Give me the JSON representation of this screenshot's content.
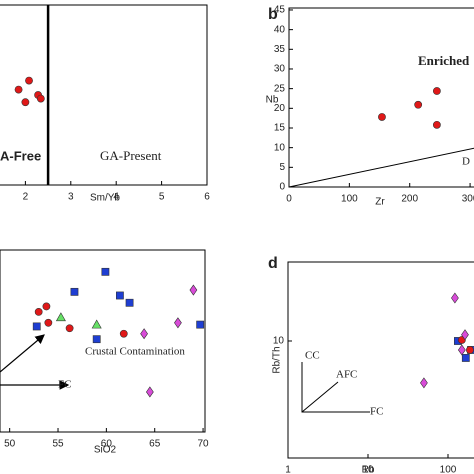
{
  "chart_data": [
    {
      "type": "scatter",
      "panel": "a",
      "xlabel": "Sm/Yb",
      "xlim": [
        0.78,
        6
      ],
      "ylim": [
        0,
        1
      ],
      "xticks": [
        2,
        3,
        4,
        5,
        6
      ],
      "divider_x": 2.5,
      "annotations": [
        "A-Free",
        "GA-Present"
      ],
      "series": [
        {
          "marker": "circle",
          "color": "#e01818",
          "x": [
            2.08,
            1.85,
            2.28,
            2.0,
            2.34
          ],
          "y": [
            0.58,
            0.53,
            0.5,
            0.46,
            0.48
          ]
        }
      ]
    },
    {
      "type": "scatter",
      "panel": "b",
      "label": "b",
      "xlabel": "Zr",
      "ylabel": "Nb",
      "xlim": [
        0,
        333
      ],
      "ylim": [
        0,
        45.5
      ],
      "xticks": [
        0,
        100,
        200,
        300
      ],
      "yticks": [
        0,
        5,
        10,
        15,
        20,
        25,
        30,
        35,
        40,
        45
      ],
      "annotations": [
        "Enriched",
        "D"
      ],
      "reference_lines": [
        {
          "x": [
            0,
            333
          ],
          "y": [
            0,
            10.7
          ]
        }
      ],
      "series": [
        {
          "marker": "circle",
          "color": "#e01818",
          "x": [
            154,
            214,
            245,
            245
          ],
          "y": [
            17.8,
            20.9,
            24.4,
            15.8
          ]
        }
      ]
    },
    {
      "type": "scatter",
      "panel": "c",
      "xlabel": "SiO2",
      "xlim": [
        49,
        70.2
      ],
      "ylim": [
        0,
        1
      ],
      "xticks": [
        50,
        55,
        60,
        65,
        70
      ],
      "annotations": [
        "Crustal Contamination",
        "FC"
      ],
      "series": [
        {
          "marker": "square",
          "color": "#1e3ed2",
          "x": [
            59.9,
            56.7,
            61.4,
            62.4,
            52.8,
            59.0,
            69.7
          ],
          "y": [
            0.88,
            0.77,
            0.75,
            0.71,
            0.58,
            0.51,
            0.59
          ]
        },
        {
          "marker": "circle",
          "color": "#e01818",
          "x": [
            53.8,
            54.0,
            56.2,
            61.8,
            53.0
          ],
          "y": [
            0.69,
            0.6,
            0.57,
            0.54,
            0.66
          ]
        },
        {
          "marker": "triangle",
          "color": "#66e066",
          "x": [
            55.3,
            59.0
          ],
          "y": [
            0.63,
            0.59
          ]
        },
        {
          "marker": "diamond",
          "color": "#d84bd8",
          "x": [
            69.0,
            67.4,
            63.9,
            64.5
          ],
          "y": [
            0.78,
            0.6,
            0.54,
            0.22
          ]
        }
      ]
    },
    {
      "type": "scatter",
      "panel": "d",
      "label": "d",
      "xlabel": "Rb",
      "ylabel": "Rb/Th",
      "xscale": "log",
      "yscale": "log",
      "xlim": [
        1,
        335
      ],
      "ylim": [
        0.33,
        100
      ],
      "xticks": [
        1,
        10,
        100
      ],
      "yticks": [
        10
      ],
      "annotations": [
        "CC",
        "AFC",
        "FC"
      ],
      "series": [
        {
          "marker": "square",
          "color": "#1e3ed2",
          "x": [
            133,
            167,
            194
          ],
          "y": [
            10,
            6.1,
            7.7
          ]
        },
        {
          "marker": "circle",
          "color": "#e01818",
          "x": [
            149,
            188
          ],
          "y": [
            10.3,
            7.7
          ]
        },
        {
          "marker": "diamond",
          "color": "#d84bd8",
          "x": [
            122,
            163,
            149,
            50
          ],
          "y": [
            35,
            12,
            7.7,
            2.95
          ]
        }
      ]
    }
  ]
}
